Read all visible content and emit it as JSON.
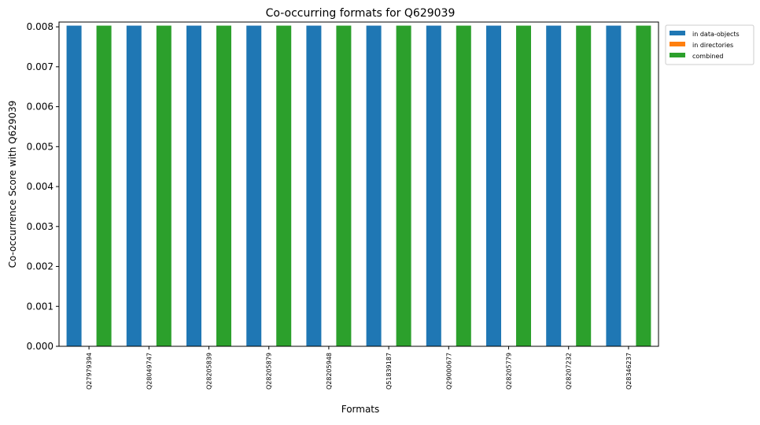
{
  "chart_data": {
    "type": "bar",
    "title": "Co-occurring formats for Q629039",
    "xlabel": "Formats",
    "ylabel": "Co-occurrence Score with Q629039",
    "categories": [
      "Q27979394",
      "Q28049747",
      "Q28205839",
      "Q28205879",
      "Q28205948",
      "Q51839187",
      "Q29000677",
      "Q28205779",
      "Q28207232",
      "Q28346237"
    ],
    "series": [
      {
        "name": "in data-objects",
        "color": "#1f77b4",
        "values": [
          0.00803,
          0.00803,
          0.00803,
          0.00803,
          0.00803,
          0.00803,
          0.00803,
          0.00803,
          0.00803,
          0.00803
        ]
      },
      {
        "name": "in directories",
        "color": "#ff7f0e",
        "values": [
          0,
          0,
          0,
          0,
          0,
          0,
          0,
          0,
          0,
          0
        ]
      },
      {
        "name": "combined",
        "color": "#2ca02c",
        "values": [
          0.00803,
          0.00803,
          0.00803,
          0.00803,
          0.00803,
          0.00803,
          0.00803,
          0.00803,
          0.00803,
          0.00803
        ]
      }
    ],
    "ylim": [
      0,
      0.00812
    ],
    "yticks": [
      "0.000",
      "0.001",
      "0.002",
      "0.003",
      "0.004",
      "0.005",
      "0.006",
      "0.007",
      "0.008"
    ],
    "grid": false,
    "legend_position": "outside-top-right"
  }
}
